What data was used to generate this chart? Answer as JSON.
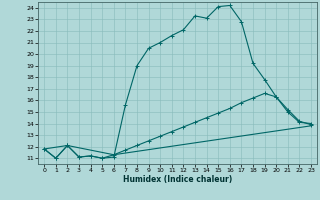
{
  "title": "",
  "xlabel": "Humidex (Indice chaleur)",
  "bg_color": "#b0d8d8",
  "line_color": "#006666",
  "grid_color": "#88bbbb",
  "xlim": [
    -0.5,
    23.5
  ],
  "ylim": [
    10.5,
    24.5
  ],
  "xticks": [
    0,
    1,
    2,
    3,
    4,
    5,
    6,
    7,
    8,
    9,
    10,
    11,
    12,
    13,
    14,
    15,
    16,
    17,
    18,
    19,
    20,
    21,
    22,
    23
  ],
  "yticks": [
    11,
    12,
    13,
    14,
    15,
    16,
    17,
    18,
    19,
    20,
    21,
    22,
    23,
    24
  ],
  "line1_x": [
    0,
    1,
    2,
    3,
    4,
    5,
    6,
    7,
    8,
    9,
    10,
    11,
    12,
    13,
    14,
    15,
    16,
    17,
    18,
    19,
    20,
    21,
    22,
    23
  ],
  "line1_y": [
    11.8,
    11.0,
    12.1,
    11.1,
    11.2,
    11.0,
    11.1,
    15.6,
    19.0,
    20.5,
    21.0,
    21.6,
    22.1,
    23.3,
    23.1,
    24.1,
    24.2,
    22.8,
    19.2,
    17.8,
    16.3,
    15.0,
    14.1,
    14.0
  ],
  "line2_x": [
    0,
    1,
    2,
    3,
    4,
    5,
    6,
    7,
    8,
    9,
    10,
    11,
    12,
    13,
    14,
    15,
    16,
    17,
    18,
    19,
    20,
    21,
    22,
    23
  ],
  "line2_y": [
    11.8,
    11.0,
    12.1,
    11.1,
    11.2,
    11.0,
    11.3,
    11.7,
    12.1,
    12.5,
    12.9,
    13.3,
    13.7,
    14.1,
    14.5,
    14.9,
    15.3,
    15.8,
    16.2,
    16.6,
    16.3,
    15.2,
    14.2,
    13.9
  ],
  "line3_x": [
    0,
    2,
    6,
    23
  ],
  "line3_y": [
    11.8,
    12.1,
    11.3,
    13.8
  ]
}
